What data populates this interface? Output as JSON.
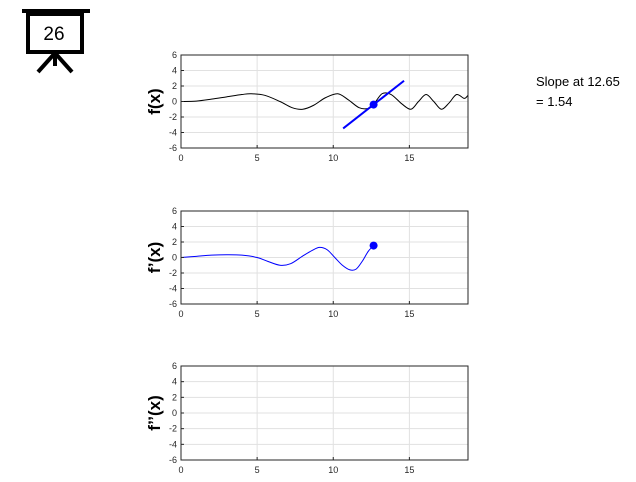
{
  "slide_badge": {
    "number": "26",
    "icon": "projection-screen-icon"
  },
  "annotation": {
    "line1": "Slope at 12.65",
    "line2": "= 1.54"
  },
  "colors": {
    "f": "#000000",
    "derivative": "#0000ff",
    "grid": "#e1e1e1",
    "axes": "#262626"
  },
  "chart_data": [
    {
      "type": "line",
      "ylabel": "f(x)",
      "xlim": [
        0,
        18.85
      ],
      "ylim": [
        -6,
        6
      ],
      "xticks": [
        0,
        5,
        10,
        15
      ],
      "yticks": [
        -6,
        -4,
        -2,
        0,
        2,
        4,
        6
      ],
      "grid": true,
      "series": [
        {
          "color": "#000000",
          "x": [
            0,
            1,
            2,
            3,
            4,
            4.6,
            5.5,
            6.5,
            7.3,
            8,
            8.7,
            9.5,
            10.3,
            11,
            11.7,
            12.3,
            12.65,
            13.2,
            13.8,
            14.5,
            15.1,
            15.6,
            16.1,
            16.6,
            17.1,
            17.6,
            18.1,
            18.6,
            18.85
          ],
          "y": [
            0.0,
            0.05,
            0.3,
            0.6,
            0.9,
            1.0,
            0.8,
            0.0,
            -0.8,
            -1.0,
            -0.5,
            0.5,
            1.0,
            0.2,
            -0.8,
            -0.9,
            -0.4,
            1.0,
            0.9,
            -0.3,
            -1.0,
            0.0,
            0.9,
            0.0,
            -1.0,
            -0.2,
            0.9,
            0.4,
            0.8
          ]
        }
      ],
      "tangent": {
        "x0": 12.65,
        "y0": -0.4,
        "slope": 1.54,
        "x_from": 10.65,
        "x_to": 14.65,
        "color": "#0000ff"
      },
      "point": {
        "x": 12.65,
        "y": -0.4,
        "color": "#0000ff"
      }
    },
    {
      "type": "line",
      "ylabel": "f’(x)",
      "xlim": [
        0,
        18.85
      ],
      "ylim": [
        -6,
        6
      ],
      "xticks": [
        0,
        5,
        10,
        15
      ],
      "yticks": [
        -6,
        -4,
        -2,
        0,
        2,
        4,
        6
      ],
      "grid": true,
      "series": [
        {
          "color": "#0000ff",
          "x": [
            0,
            1,
            2,
            3,
            4,
            5,
            5.7,
            6.5,
            7.2,
            8,
            8.6,
            9.1,
            9.6,
            10.1,
            10.6,
            11.1,
            11.5,
            11.9,
            12.3,
            12.65
          ],
          "y": [
            0.0,
            0.15,
            0.3,
            0.35,
            0.3,
            0.0,
            -0.5,
            -1.0,
            -0.8,
            0.2,
            0.9,
            1.3,
            1.0,
            0.0,
            -1.0,
            -1.6,
            -1.5,
            -0.5,
            0.8,
            1.54
          ]
        }
      ],
      "point": {
        "x": 12.65,
        "y": 1.54,
        "color": "#0000ff"
      }
    },
    {
      "type": "line",
      "ylabel": "f’’(x)",
      "xlim": [
        0,
        18.85
      ],
      "ylim": [
        -6,
        6
      ],
      "xticks": [
        0,
        5,
        10,
        15
      ],
      "yticks": [
        -6,
        -4,
        -2,
        0,
        2,
        4,
        6
      ],
      "grid": true,
      "series": []
    }
  ]
}
